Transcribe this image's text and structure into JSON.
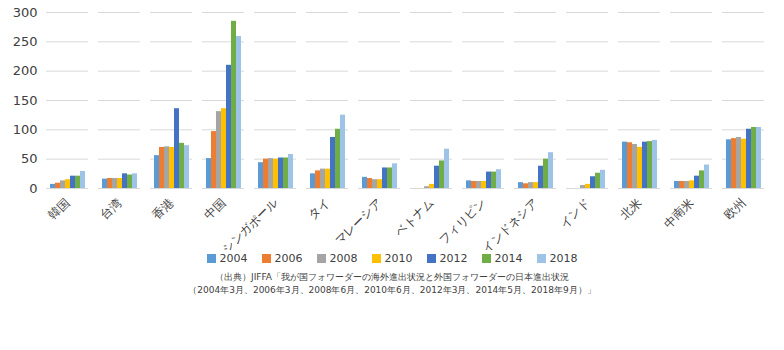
{
  "chart_data": {
    "type": "bar",
    "categories": [
      "韓国",
      "台湾",
      "香港",
      "中国",
      "シンガポール",
      "タイ",
      "マレーシア",
      "ベトナム",
      "フィリピン",
      "インドネシア",
      "インド",
      "北米",
      "中南米",
      "欧州"
    ],
    "series": [
      {
        "name": "2004",
        "color": "#5b9bd5",
        "values": [
          7,
          16,
          56,
          51,
          44,
          25,
          19,
          null,
          13,
          10,
          null,
          79,
          12,
          83
        ]
      },
      {
        "name": "2006",
        "color": "#ed7d31",
        "values": [
          9,
          17,
          70,
          97,
          50,
          30,
          17,
          null,
          12,
          8,
          null,
          78,
          12,
          85
        ]
      },
      {
        "name": "2008",
        "color": "#a5a5a5",
        "values": [
          13,
          17,
          71,
          131,
          51,
          33,
          15,
          3,
          12,
          10,
          5,
          75,
          12,
          87
        ]
      },
      {
        "name": "2010",
        "color": "#ffc000",
        "values": [
          15,
          17,
          70,
          136,
          50,
          33,
          15,
          7,
          12,
          10,
          7,
          70,
          13,
          84
        ]
      },
      {
        "name": "2012",
        "color": "#4472c4",
        "values": [
          21,
          25,
          136,
          210,
          52,
          87,
          35,
          38,
          28,
          38,
          20,
          79,
          21,
          101
        ]
      },
      {
        "name": "2014",
        "color": "#70ad47",
        "values": [
          21,
          23,
          77,
          285,
          52,
          101,
          35,
          47,
          28,
          50,
          26,
          80,
          30,
          104
        ]
      },
      {
        "name": "2018",
        "color": "#9dc3e6",
        "values": [
          29,
          25,
          73,
          259,
          58,
          125,
          42,
          67,
          32,
          61,
          31,
          82,
          40,
          104
        ]
      }
    ],
    "ylim": [
      0,
      300
    ],
    "yticks": [
      0,
      50,
      100,
      150,
      200,
      250,
      300
    ],
    "grid": true,
    "legend": "bottom",
    "caption": [
      "（出典）JIFFA「我が国フォワーダーの海外進出状況と外国フォワーダーの日本進出状況",
      "（2004年3月、2006年3月、2008年6月、2010年6月、2012年3月、2014年5月、2018年9月）」"
    ]
  }
}
